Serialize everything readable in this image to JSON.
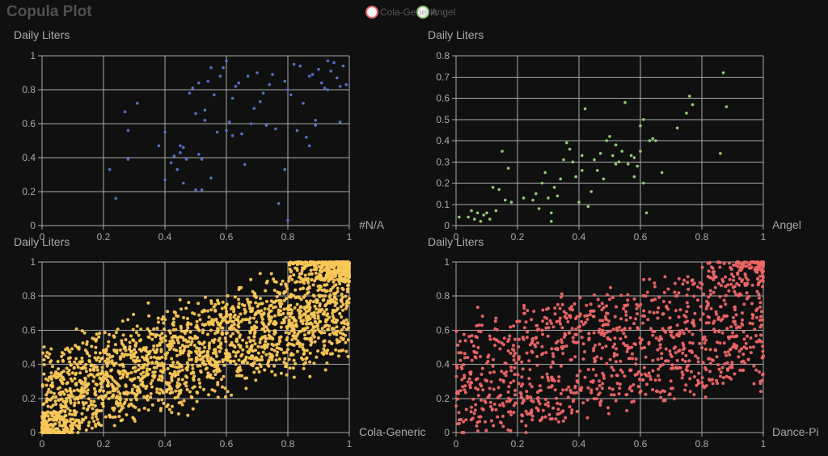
{
  "title": "Copula Plot",
  "legend": [
    {
      "name": "Cola-Generic",
      "color": "#e66765"
    },
    {
      "name": "Angel",
      "color": "#91cc75"
    },
    {
      "name": "Cola-Generic",
      "color": "#fac858"
    },
    {
      "name": "Dance-Pi",
      "color": "#ee6666"
    }
  ],
  "chart_data": [
    {
      "type": "scatter",
      "panel": "top-left",
      "ylabel": "Daily Liters",
      "xlabel": "#N/A",
      "color": "#5470c6",
      "xlim": [
        0,
        1
      ],
      "ylim": [
        0,
        1
      ],
      "xticks": [
        "0",
        "0.2",
        "0.4",
        "0.6",
        "0.8",
        "1"
      ],
      "yticks": [
        "0",
        "0.2",
        "0.4",
        "0.6",
        "0.8",
        "1"
      ],
      "points": [
        [
          0.22,
          0.33
        ],
        [
          0.24,
          0.16
        ],
        [
          0.27,
          0.67
        ],
        [
          0.28,
          0.56
        ],
        [
          0.28,
          0.39
        ],
        [
          0.31,
          0.72
        ],
        [
          0.38,
          0.47
        ],
        [
          0.4,
          0.27
        ],
        [
          0.4,
          0.55
        ],
        [
          0.42,
          0.37
        ],
        [
          0.43,
          0.41
        ],
        [
          0.44,
          0.33
        ],
        [
          0.45,
          0.47
        ],
        [
          0.45,
          0.43
        ],
        [
          0.46,
          0.46
        ],
        [
          0.46,
          0.25
        ],
        [
          0.47,
          0.39
        ],
        [
          0.48,
          0.78
        ],
        [
          0.49,
          0.81
        ],
        [
          0.5,
          0.21
        ],
        [
          0.5,
          0.66
        ],
        [
          0.51,
          0.42
        ],
        [
          0.51,
          0.84
        ],
        [
          0.52,
          0.39
        ],
        [
          0.52,
          0.21
        ],
        [
          0.53,
          0.62
        ],
        [
          0.53,
          0.68
        ],
        [
          0.54,
          0.85
        ],
        [
          0.55,
          0.28
        ],
        [
          0.55,
          0.93
        ],
        [
          0.56,
          0.77
        ],
        [
          0.57,
          0.55
        ],
        [
          0.58,
          0.88
        ],
        [
          0.59,
          0.93
        ],
        [
          0.6,
          0.97
        ],
        [
          0.6,
          0.56
        ],
        [
          0.61,
          0.61
        ],
        [
          0.62,
          0.53
        ],
        [
          0.62,
          0.75
        ],
        [
          0.63,
          0.82
        ],
        [
          0.64,
          0.84
        ],
        [
          0.65,
          0.54
        ],
        [
          0.66,
          0.36
        ],
        [
          0.67,
          0.88
        ],
        [
          0.68,
          0.6
        ],
        [
          0.69,
          0.69
        ],
        [
          0.7,
          0.9
        ],
        [
          0.71,
          0.73
        ],
        [
          0.72,
          0.78
        ],
        [
          0.73,
          0.59
        ],
        [
          0.74,
          0.83
        ],
        [
          0.75,
          0.89
        ],
        [
          0.76,
          0.57
        ],
        [
          0.77,
          0.13
        ],
        [
          0.79,
          0.33
        ],
        [
          0.79,
          0.85
        ],
        [
          0.8,
          0.03
        ],
        [
          0.8,
          0.8
        ],
        [
          0.81,
          0.77
        ],
        [
          0.82,
          0.95
        ],
        [
          0.83,
          0.56
        ],
        [
          0.84,
          0.94
        ],
        [
          0.85,
          0.72
        ],
        [
          0.86,
          0.52
        ],
        [
          0.87,
          0.88
        ],
        [
          0.87,
          0.47
        ],
        [
          0.88,
          0.89
        ],
        [
          0.89,
          0.62
        ],
        [
          0.89,
          0.59
        ],
        [
          0.9,
          0.92
        ],
        [
          0.91,
          0.84
        ],
        [
          0.92,
          0.81
        ],
        [
          0.93,
          0.97
        ],
        [
          0.94,
          0.91
        ],
        [
          0.95,
          0.96
        ],
        [
          0.96,
          0.87
        ],
        [
          0.97,
          0.61
        ],
        [
          0.98,
          0.94
        ],
        [
          0.99,
          0.83
        ],
        [
          0.93,
          0.8
        ],
        [
          0.97,
          0.82
        ]
      ]
    },
    {
      "type": "scatter",
      "panel": "top-right",
      "ylabel": "Daily Liters",
      "xlabel": "Angel",
      "color": "#91cc75",
      "xlim": [
        0,
        1
      ],
      "ylim": [
        0,
        0.8
      ],
      "xticks": [
        "0",
        "0.2",
        "0.4",
        "0.6",
        "0.8",
        "1"
      ],
      "yticks": [
        "0",
        "0.1",
        "0.2",
        "0.3",
        "0.4",
        "0.5",
        "0.6",
        "0.7",
        "0.8"
      ],
      "points": [
        [
          0.01,
          0.04
        ],
        [
          0.04,
          0.04
        ],
        [
          0.05,
          0.07
        ],
        [
          0.06,
          0.03
        ],
        [
          0.07,
          0.06
        ],
        [
          0.08,
          0.02
        ],
        [
          0.09,
          0.05
        ],
        [
          0.1,
          0.06
        ],
        [
          0.11,
          0.03
        ],
        [
          0.12,
          0.18
        ],
        [
          0.13,
          0.07
        ],
        [
          0.14,
          0.17
        ],
        [
          0.15,
          0.35
        ],
        [
          0.16,
          0.12
        ],
        [
          0.17,
          0.27
        ],
        [
          0.18,
          0.11
        ],
        [
          0.22,
          0.13
        ],
        [
          0.25,
          0.12
        ],
        [
          0.26,
          0.15
        ],
        [
          0.27,
          0.08
        ],
        [
          0.28,
          0.2
        ],
        [
          0.29,
          0.25
        ],
        [
          0.3,
          0.13
        ],
        [
          0.31,
          0.06
        ],
        [
          0.31,
          0.02
        ],
        [
          0.32,
          0.18
        ],
        [
          0.33,
          0.14
        ],
        [
          0.34,
          0.22
        ],
        [
          0.35,
          0.31
        ],
        [
          0.36,
          0.39
        ],
        [
          0.37,
          0.36
        ],
        [
          0.38,
          0.3
        ],
        [
          0.39,
          0.23
        ],
        [
          0.4,
          0.11
        ],
        [
          0.41,
          0.26
        ],
        [
          0.41,
          0.33
        ],
        [
          0.42,
          0.55
        ],
        [
          0.43,
          0.09
        ],
        [
          0.44,
          0.16
        ],
        [
          0.45,
          0.31
        ],
        [
          0.46,
          0.26
        ],
        [
          0.47,
          0.34
        ],
        [
          0.48,
          0.22
        ],
        [
          0.49,
          0.4
        ],
        [
          0.5,
          0.42
        ],
        [
          0.51,
          0.33
        ],
        [
          0.52,
          0.38
        ],
        [
          0.53,
          0.3
        ],
        [
          0.54,
          0.35
        ],
        [
          0.55,
          0.58
        ],
        [
          0.56,
          0.29
        ],
        [
          0.57,
          0.33
        ],
        [
          0.58,
          0.23
        ],
        [
          0.59,
          0.28
        ],
        [
          0.6,
          0.35
        ],
        [
          0.61,
          0.2
        ],
        [
          0.61,
          0.5
        ],
        [
          0.62,
          0.06
        ],
        [
          0.63,
          0.4
        ],
        [
          0.64,
          0.41
        ],
        [
          0.65,
          0.4
        ],
        [
          0.67,
          0.25
        ],
        [
          0.72,
          0.46
        ],
        [
          0.75,
          0.53
        ],
        [
          0.76,
          0.61
        ],
        [
          0.77,
          0.57
        ],
        [
          0.86,
          0.34
        ],
        [
          0.87,
          0.72
        ],
        [
          0.88,
          0.56
        ],
        [
          0.6,
          0.47
        ],
        [
          0.58,
          0.32
        ],
        [
          0.52,
          0.29
        ]
      ]
    },
    {
      "type": "scatter",
      "panel": "bottom-left",
      "ylabel": "Daily Liters",
      "xlabel": "Cola-Generic",
      "color": "#fac858",
      "xlim": [
        0,
        1
      ],
      "ylim": [
        0,
        1
      ],
      "xticks": [
        "0",
        "0.2",
        "0.4",
        "0.6",
        "0.8",
        "1"
      ],
      "yticks": [
        "0",
        "0.2",
        "0.4",
        "0.6",
        "0.8",
        "1"
      ],
      "points_generated": {
        "count": 2400,
        "dependence": "positive, clustered at (0,0) and (1,1)"
      }
    },
    {
      "type": "scatter",
      "panel": "bottom-right",
      "ylabel": "Daily Liters",
      "xlabel": "Dance-Pi",
      "color": "#ee6666",
      "xlim": [
        0,
        1
      ],
      "ylim": [
        0,
        1
      ],
      "xticks": [
        "0",
        "0.2",
        "0.4",
        "0.6",
        "0.8",
        "1"
      ],
      "yticks": [
        "0",
        "0.2",
        "0.4",
        "0.6",
        "0.8",
        "1"
      ],
      "points_generated": {
        "count": 1200,
        "dependence": "weak positive, clustered at (1,1)"
      }
    }
  ]
}
